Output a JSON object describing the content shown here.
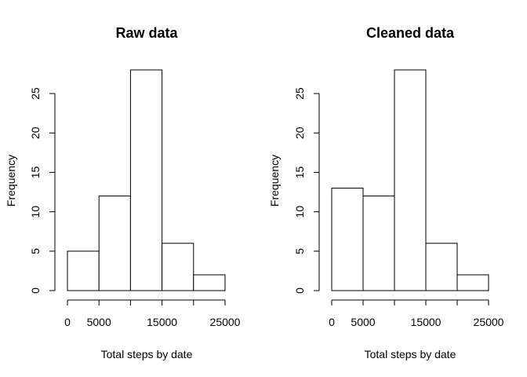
{
  "chart_data": [
    {
      "type": "bar",
      "title": "Raw data",
      "xlabel": "Total steps by date",
      "ylabel": "Frequency",
      "bins": [
        [
          0,
          5000
        ],
        [
          5000,
          10000
        ],
        [
          10000,
          15000
        ],
        [
          15000,
          20000
        ],
        [
          20000,
          25000
        ]
      ],
      "values": [
        5,
        12,
        28,
        6,
        2
      ],
      "xlim": [
        0,
        25000
      ],
      "ylim": [
        0,
        28
      ],
      "x_ticks": [
        0,
        5000,
        10000,
        15000,
        20000,
        25000
      ],
      "x_tick_labels": [
        "0",
        "5000",
        "",
        "15000",
        "",
        "25000"
      ],
      "y_ticks": [
        0,
        5,
        10,
        15,
        20,
        25
      ],
      "y_tick_labels": [
        "0",
        "5",
        "10",
        "15",
        "20",
        "25"
      ]
    },
    {
      "type": "bar",
      "title": "Cleaned data",
      "xlabel": "Total steps by date",
      "ylabel": "Frequency",
      "bins": [
        [
          0,
          5000
        ],
        [
          5000,
          10000
        ],
        [
          10000,
          15000
        ],
        [
          15000,
          20000
        ],
        [
          20000,
          25000
        ]
      ],
      "values": [
        13,
        12,
        28,
        6,
        2
      ],
      "xlim": [
        0,
        25000
      ],
      "ylim": [
        0,
        28
      ],
      "x_ticks": [
        0,
        5000,
        10000,
        15000,
        20000,
        25000
      ],
      "x_tick_labels": [
        "0",
        "5000",
        "",
        "15000",
        "",
        "25000"
      ],
      "y_ticks": [
        0,
        5,
        10,
        15,
        20,
        25
      ],
      "y_tick_labels": [
        "0",
        "5",
        "10",
        "15",
        "20",
        "25"
      ]
    }
  ]
}
